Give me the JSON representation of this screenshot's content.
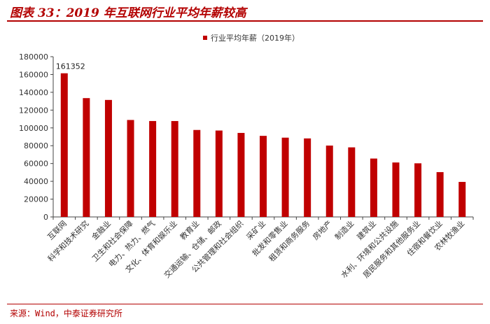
{
  "title": "图表 33：2019 年互联网行业平均年薪较高",
  "source": "来源：Wind，中泰证券研究所",
  "colors": {
    "bar": "#c00000",
    "accent": "#b30000"
  },
  "chart_data": {
    "type": "bar",
    "categories": [
      "互联网",
      "科学和技术研究",
      "金融业",
      "卫生和社会保障",
      "电力、热力、燃气",
      "文化、体育和娱乐业",
      "教育业",
      "交通运输、仓储、邮政",
      "公共管理和社会组织",
      "采矿业",
      "批发和零售业",
      "租赁和商务服务",
      "房地产",
      "制造业",
      "建筑业",
      "水利、环境和公共设施",
      "居民服务和其他服务业",
      "住宿和餐饮业",
      "农林牧渔业"
    ],
    "series": [
      {
        "name": "行业平均年薪（2019年）",
        "values": [
          161352,
          133459,
          131405,
          108903,
          107733,
          107708,
          97681,
          97050,
          94369,
          91068,
          89047,
          88190,
          80157,
          78147,
          65580,
          61158,
          60232,
          50346,
          39340
        ]
      }
    ],
    "data_labels": [
      "161352"
    ],
    "yticks": [
      "0",
      "20000",
      "40000",
      "60000",
      "80000",
      "100000",
      "120000",
      "140000",
      "160000",
      "180000"
    ],
    "ylim": [
      0,
      180000
    ],
    "legend_position": "top-center",
    "grid": false
  }
}
